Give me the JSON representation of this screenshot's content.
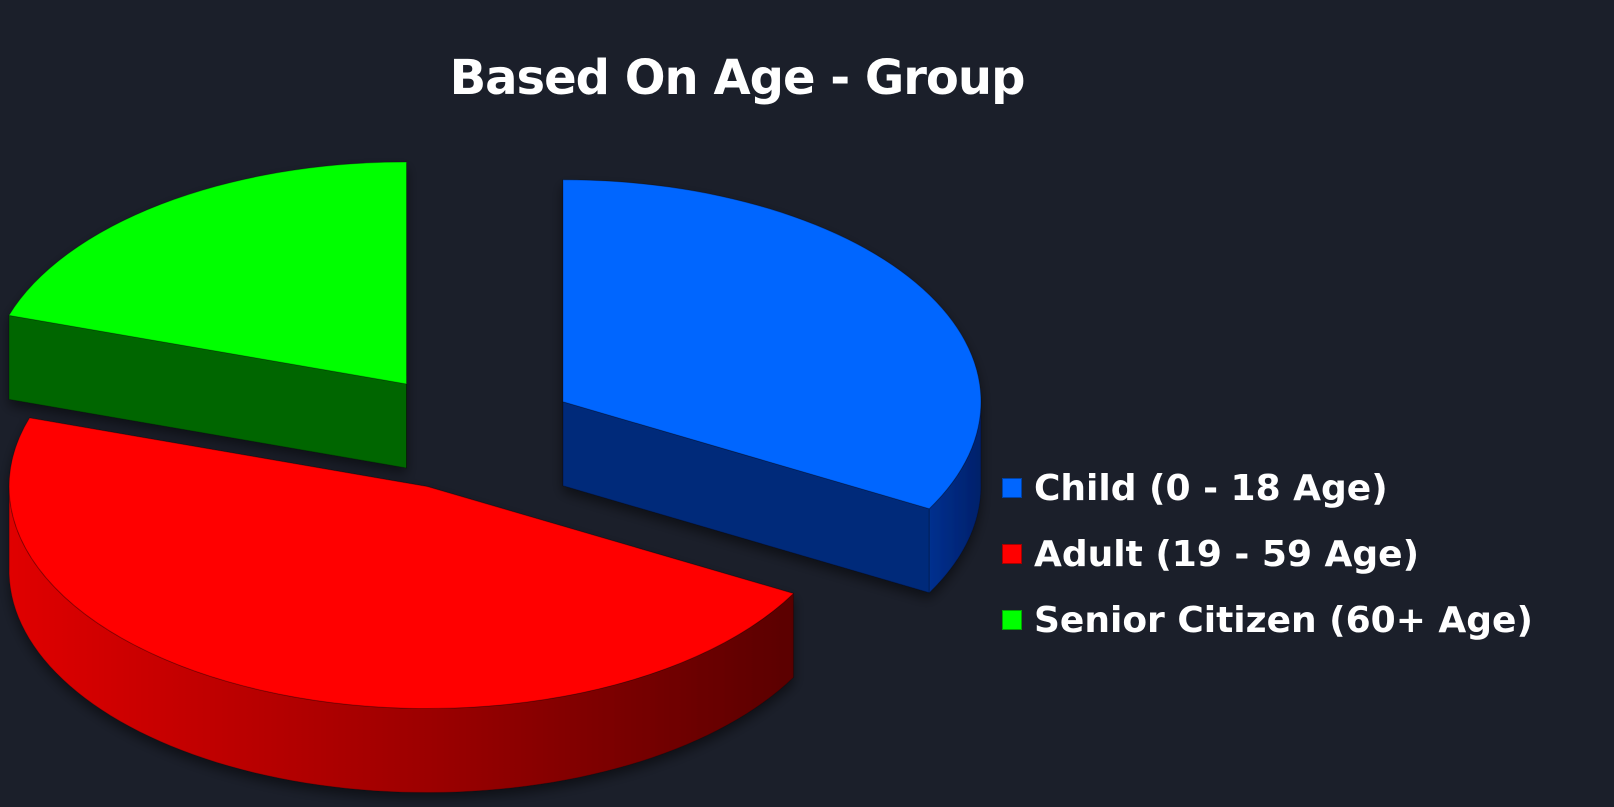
{
  "chart_data": {
    "type": "pie",
    "title": "Based On Age - Group",
    "categories": [
      "Child (0 - 18 Age)",
      "Adult (19 - 59 Age)",
      "Senior Citizen (60+ Age)"
    ],
    "values": [
      33,
      47,
      20
    ],
    "unit": "%",
    "colors": [
      "#0066ff",
      "#ff0000",
      "#00ff00"
    ],
    "side_colors": [
      "#00297a",
      "#b30000",
      "#006600"
    ],
    "exploded": true,
    "style": "3d",
    "legend_position": "right"
  }
}
